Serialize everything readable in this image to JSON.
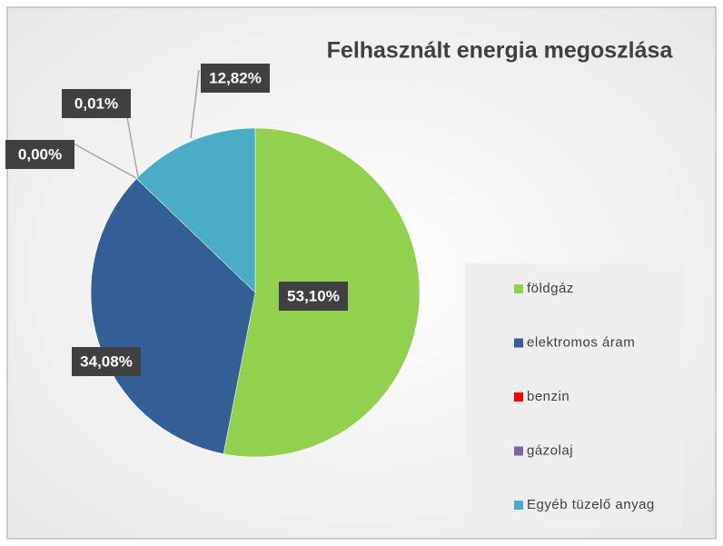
{
  "chart_data": {
    "type": "pie",
    "title": "Felhasznált energia megoszlása",
    "categories": [
      "földgáz",
      "elektromos áram",
      "benzin",
      "gázolaj",
      "Egyéb tüzelő anyag"
    ],
    "values": [
      53.1,
      34.08,
      0.0,
      0.01,
      12.82
    ],
    "value_labels": [
      "53,10%",
      "34,08%",
      "0,00%",
      "0,01%",
      "12,82%"
    ],
    "colors": [
      "#92d050",
      "#335f96",
      "#ff0000",
      "#8064a2",
      "#4bacc6"
    ],
    "legend": "right"
  }
}
